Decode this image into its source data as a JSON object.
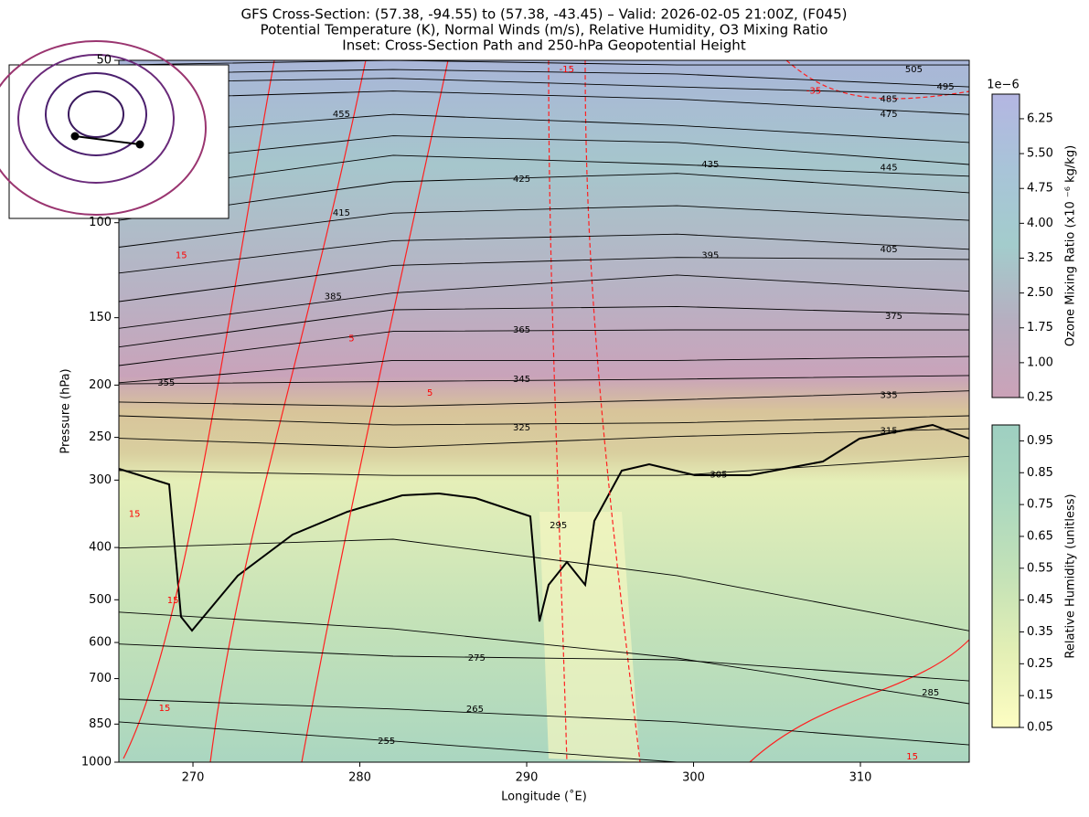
{
  "chart_data": {
    "type": "cross-section",
    "title": [
      "GFS Cross-Section: (57.38, -94.55) to (57.38, -43.45) – Valid: 2026-02-05 21:00Z, (F045)",
      "Potential Temperature (K), Normal Winds (m/s), Relative Humidity, O3 Mixing Ratio",
      "Inset: Cross-Section Path and 250-hPa Geopotential Height"
    ],
    "xlabel": "Longitude (˚E)",
    "ylabel": "Pressure (hPa)",
    "xlim": [
      265.56,
      316.52
    ],
    "xticks": [
      270,
      280,
      290,
      300,
      310
    ],
    "ylim": [
      1000,
      50
    ],
    "yticks": [
      50,
      100,
      150,
      200,
      250,
      300,
      400,
      500,
      600,
      700,
      850,
      1000
    ],
    "log_y": true,
    "contour_color": "#000000",
    "contour_lons": [
      265.56,
      282,
      299,
      316.52
    ],
    "theta_contours": [
      {
        "level": 255,
        "p": [
          842,
          914,
          1000,
          1000
        ],
        "label_lon": 281.6,
        "label_p": 914
      },
      {
        "level": 265,
        "p": [
          764,
          797,
          842,
          929
        ],
        "label_lon": 286.9,
        "label_p": 797
      },
      {
        "level": 275,
        "p": [
          604,
          636,
          646,
          707
        ],
        "label_lon": 287,
        "label_p": 641
      },
      {
        "level": 285,
        "p": [
          527,
          566,
          641,
          779
        ],
        "label_lon": 314.2,
        "label_p": 743
      },
      {
        "level": 295,
        "p": [
          401,
          386,
          451,
          571
        ],
        "label_lon": 291.9,
        "label_p": 364
      },
      {
        "level": 305,
        "p": [
          288,
          294,
          294,
          271
        ],
        "label_lon": 301.5,
        "label_p": 293
      },
      {
        "level": 315,
        "p": [
          251,
          261,
          249,
          241
        ],
        "label_lon": 311.7,
        "label_p": 243
      },
      {
        "level": 325,
        "p": [
          228,
          237,
          235,
          228
        ],
        "label_lon": 289.7,
        "label_p": 240
      },
      {
        "level": 335,
        "p": [
          215,
          219,
          213,
          205
        ],
        "label_lon": 311.7,
        "label_p": 209
      },
      {
        "level": 345,
        "p": [
          199,
          197,
          195,
          192
        ],
        "label_lon": 289.7,
        "label_p": 195
      },
      {
        "level": 355,
        "p": [
          198,
          180,
          180,
          177
        ],
        "label_lon": 268.4,
        "label_p": 198
      },
      {
        "level": 365,
        "p": [
          184,
          159,
          158,
          158
        ],
        "label_lon": 289.7,
        "label_p": 158
      },
      {
        "level": 375,
        "p": [
          170,
          145,
          143,
          148
        ],
        "label_lon": 312,
        "label_p": 149
      },
      {
        "level": 385,
        "p": [
          157,
          135,
          125,
          134
        ],
        "label_lon": 278.4,
        "label_p": 137
      },
      {
        "level": 395,
        "p": [
          140,
          120,
          116,
          117
        ],
        "label_lon": 301,
        "label_p": 115
      },
      {
        "level": 405,
        "p": [
          124,
          108,
          105,
          112
        ],
        "label_lon": 311.7,
        "label_p": 112
      },
      {
        "level": 415,
        "p": [
          111,
          96,
          93,
          99
        ],
        "label_lon": 278.9,
        "label_p": 96
      },
      {
        "level": 425,
        "p": [
          99,
          84,
          81,
          88
        ],
        "label_lon": 289.7,
        "label_p": 83
      },
      {
        "level": 435,
        "p": [
          88,
          75,
          78,
          82
        ],
        "label_lon": 301,
        "label_p": 78
      },
      {
        "level": 445,
        "p": [
          78,
          69,
          71,
          78
        ],
        "label_lon": 311.7,
        "label_p": 79
      },
      {
        "level": 455,
        "p": [
          69,
          63,
          66,
          71
        ],
        "label_lon": 278.9,
        "label_p": 63
      },
      {
        "level": 475,
        "p": [
          59,
          57,
          59,
          63
        ],
        "label_lon": 311.7,
        "label_p": 63
      },
      {
        "level": 485,
        "p": [
          55,
          54,
          56,
          58
        ],
        "label_lon": 311.7,
        "label_p": 59
      },
      {
        "level": 495,
        "p": [
          53,
          52,
          53,
          56
        ],
        "label_lon": 315.1,
        "label_p": 56
      },
      {
        "level": 505,
        "p": [
          51,
          50,
          51,
          51
        ],
        "label_lon": 313.2,
        "label_p": 52
      }
    ],
    "wind_color": "#ff0000",
    "wind_labels": [
      {
        "text": "15",
        "lon": 269.3,
        "p": 115
      },
      {
        "text": "5",
        "lon": 279.5,
        "p": 164
      },
      {
        "text": "5",
        "lon": 284.2,
        "p": 207
      },
      {
        "text": "-15",
        "lon": 292.4,
        "p": 52
      },
      {
        "text": "-35",
        "lon": 307.2,
        "p": 57
      },
      {
        "text": "15",
        "lon": 266.5,
        "p": 347
      },
      {
        "text": "15",
        "lon": 268.8,
        "p": 501
      },
      {
        "text": "15",
        "lon": 268.3,
        "p": 795
      },
      {
        "text": "15",
        "lon": 313.1,
        "p": 977
      }
    ],
    "colorbars": [
      {
        "label": "Ozone Mixing Ratio (x10 ⁻⁶ kg/kg)",
        "offset_text": "1e−6",
        "ylim": [
          0.25,
          6.78
        ],
        "yticks": [
          0.25,
          {
            "value": 1,
            "label": "1.00"
          },
          1.75,
          {
            "value": 2.5,
            "label": "2.50"
          },
          3.25,
          {
            "value": 4,
            "label": "4.00"
          },
          4.75,
          {
            "value": 5.5,
            "label": "5.50"
          },
          6.25
        ],
        "colors": [
          "#cba2b8",
          "#b6aec0",
          "#a3cccc",
          "#a8c4d8",
          "#b4b6e2"
        ]
      },
      {
        "label": "Relative Humidity (unitless)",
        "ylim": [
          0.05,
          1.0
        ],
        "yticks": [
          0.05,
          0.15,
          0.25,
          0.35,
          0.45,
          0.55,
          0.65,
          0.75,
          0.85,
          0.95
        ],
        "colors": [
          "#fdfdc2",
          "#e3efb5",
          "#c4e2b7",
          "#acd8bf",
          "#9ecfc1"
        ]
      }
    ]
  }
}
